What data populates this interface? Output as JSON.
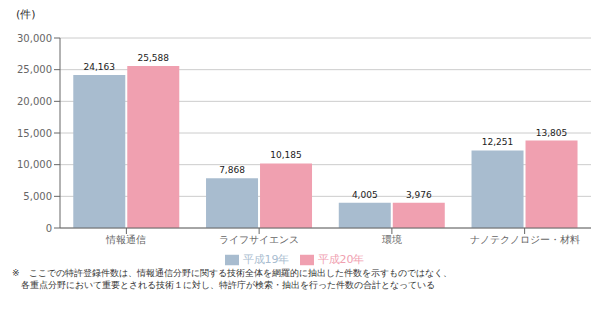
{
  "chart_data": {
    "type": "bar",
    "y_label": "(件)",
    "categories": [
      "情報通信",
      "ライフサイエンス",
      "環境",
      "ナノテクノロジー・材料"
    ],
    "series": [
      {
        "name": "平成19年",
        "color": "#a8bccf",
        "values": [
          24163,
          7868,
          4005,
          12251
        ],
        "value_labels": [
          "24,163",
          "7,868",
          "4,005",
          "12,251"
        ]
      },
      {
        "name": "平成20年",
        "color": "#f0a0b0",
        "values": [
          25588,
          10185,
          3976,
          13805
        ],
        "value_labels": [
          "25,588",
          "10,185",
          "3,976",
          "13,805"
        ]
      }
    ],
    "ylim": [
      0,
      30000
    ],
    "yticks": [
      0,
      {
        "value": 5000,
        "label": "5,000"
      },
      {
        "value": 10000,
        "label": "10,000"
      },
      {
        "value": 15000,
        "label": "15,000"
      },
      {
        "value": 20000,
        "label": "20,000"
      },
      {
        "value": 25000,
        "label": "25,000"
      },
      {
        "value": 30000,
        "label": "30,000"
      }
    ],
    "grid": true,
    "legend": "bottom",
    "data_labels": true,
    "annotations": [
      "※　ここでの特許登録件数は、情報通信分野に関する技術全体を網羅的に抽出した件数を示すものではなく、",
      "　各重点分野において重要とされる技術１に対し、特許庁が検索・抽出を行った件数の合計となっている"
    ]
  }
}
